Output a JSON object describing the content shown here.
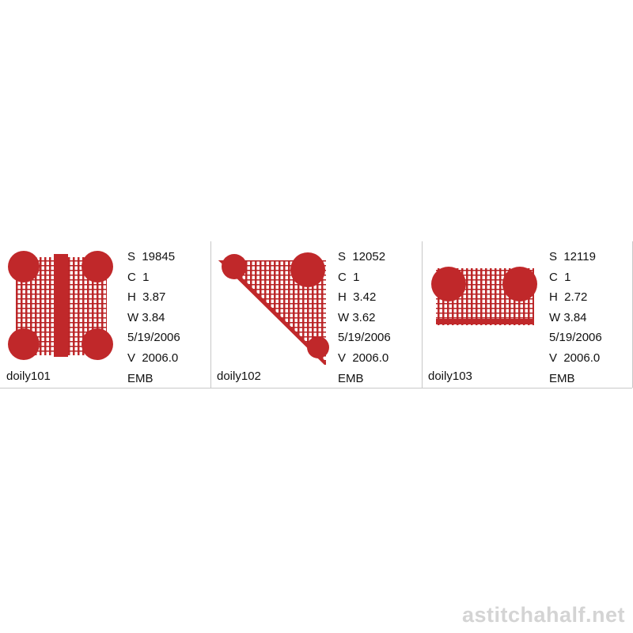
{
  "items": [
    {
      "name": "doily101",
      "s": "S  19845",
      "c": "C  1",
      "h": "H  3.87",
      "w": "W 3.84",
      "date": "5/19/2006",
      "v": "V  2006.0",
      "type": "EMB",
      "shape": "square"
    },
    {
      "name": "doily102",
      "s": "S  12052",
      "c": "C  1",
      "h": "H  3.42",
      "w": "W 3.62",
      "date": "5/19/2006",
      "v": "V  2006.0",
      "type": "EMB",
      "shape": "triangle"
    },
    {
      "name": "doily103",
      "s": "S  12119",
      "c": "C  1",
      "h": "H  2.72",
      "w": "W 3.84",
      "date": "5/19/2006",
      "v": "V  2006.0",
      "type": "EMB",
      "shape": "half"
    }
  ],
  "watermark": "astitchahalf.net",
  "colors": {
    "stitch": "#c0282a",
    "border": "#c8c8c8"
  }
}
